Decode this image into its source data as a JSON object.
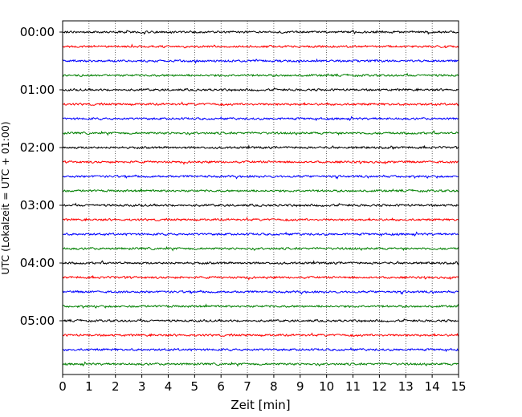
{
  "chart_data": {
    "type": "line",
    "title": "",
    "xlabel": "Zeit  [min]",
    "ylabel": "UTC (Lokalzeit = UTC + 01:00)",
    "xlim": [
      0,
      15
    ],
    "x_ticks": [
      0,
      1,
      2,
      3,
      4,
      5,
      6,
      7,
      8,
      9,
      10,
      11,
      12,
      13,
      14,
      15
    ],
    "x_tick_labels": [
      "0",
      "1",
      "2",
      "3",
      "4",
      "5",
      "6",
      "7",
      "8",
      "9",
      "10",
      "11",
      "12",
      "13",
      "14",
      "15"
    ],
    "y_tick_labels": [
      "00:00",
      "01:00",
      "02:00",
      "03:00",
      "04:00",
      "05:00"
    ],
    "vertical_grid": true,
    "grid_style": "dotted",
    "trace_colors": [
      "#000000",
      "#ff0000",
      "#0000ff",
      "#008000"
    ],
    "trace_count": 24,
    "trace_minutes": 15
  }
}
